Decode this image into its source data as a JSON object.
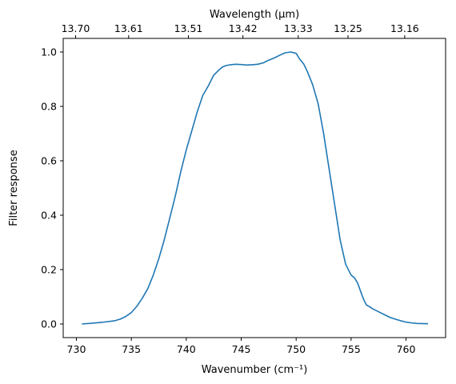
{
  "chart_data": {
    "type": "line",
    "title": "",
    "xlabel": "Wavenumber (cm⁻¹)",
    "ylabel": "Filter response",
    "x2label": "Wavelength (μm)",
    "xlim": [
      728.8,
      763.6
    ],
    "ylim": [
      -0.05,
      1.05
    ],
    "xticks": [
      730,
      735,
      740,
      745,
      750,
      755,
      760
    ],
    "xtick_labels": [
      "730",
      "735",
      "740",
      "745",
      "750",
      "755",
      "760"
    ],
    "yticks": [
      0.0,
      0.2,
      0.4,
      0.6,
      0.8,
      1.0
    ],
    "ytick_labels": [
      "0.0",
      "0.2",
      "0.4",
      "0.6",
      "0.8",
      "1.0"
    ],
    "x2ticks": [
      13.7,
      13.61,
      13.51,
      13.42,
      13.33,
      13.25,
      13.16
    ],
    "x2tick_labels": [
      "13.70",
      "13.61",
      "13.51",
      "13.42",
      "13.33",
      "13.25",
      "13.16"
    ],
    "grid": false,
    "line_color": "#1f77b4",
    "series": [
      {
        "x": [
          730.5,
          731.5,
          732.5,
          733.5,
          734.0,
          734.5,
          735.0,
          735.5,
          736.0,
          736.5,
          737.0,
          737.5,
          738.0,
          738.5,
          739.0,
          739.5,
          740.0,
          740.5,
          741.0,
          741.5,
          742.0,
          742.5,
          743.0,
          743.3,
          743.6,
          744.0,
          744.5,
          745.0,
          745.5,
          746.0,
          746.5,
          747.0,
          747.5,
          748.0,
          748.5,
          749.0,
          749.5,
          750.0,
          750.3,
          750.7,
          751.0,
          751.5,
          752.0,
          752.5,
          753.0,
          753.5,
          754.0,
          754.5,
          755.0,
          755.3,
          755.6,
          756.0,
          756.2,
          756.4,
          756.7,
          757.0,
          757.5,
          758.0,
          758.5,
          759.0,
          759.5,
          760.0,
          760.5,
          761.0,
          762.0
        ],
        "y": [
          0.0,
          0.003,
          0.007,
          0.012,
          0.018,
          0.028,
          0.042,
          0.065,
          0.095,
          0.13,
          0.18,
          0.24,
          0.31,
          0.39,
          0.47,
          0.56,
          0.64,
          0.71,
          0.78,
          0.84,
          0.875,
          0.915,
          0.935,
          0.945,
          0.95,
          0.953,
          0.955,
          0.954,
          0.952,
          0.953,
          0.955,
          0.96,
          0.97,
          0.978,
          0.988,
          0.997,
          1.0,
          0.995,
          0.975,
          0.955,
          0.93,
          0.88,
          0.81,
          0.7,
          0.57,
          0.44,
          0.31,
          0.22,
          0.18,
          0.17,
          0.15,
          0.105,
          0.085,
          0.07,
          0.063,
          0.055,
          0.045,
          0.035,
          0.025,
          0.018,
          0.012,
          0.007,
          0.004,
          0.002,
          0.001
        ]
      }
    ]
  }
}
